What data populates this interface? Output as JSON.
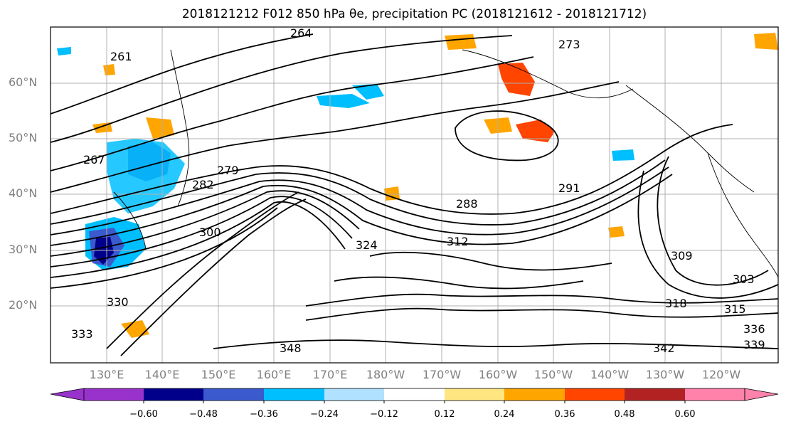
{
  "title": "2018121212 F012 850 hPa θe, precipitation PC (2018121612 - 2018121712)",
  "map": {
    "lat_labels": [
      "60°N",
      "50°N",
      "40°N",
      "30°N",
      "20°N"
    ],
    "lon_labels": [
      "130°E",
      "140°E",
      "150°E",
      "160°E",
      "170°E",
      "180°W",
      "170°W",
      "160°W",
      "150°W",
      "140°W",
      "130°W",
      "120°W"
    ],
    "contour_labels": [
      "264",
      "261",
      "267",
      "279",
      "282",
      "288",
      "309",
      "303",
      "312",
      "315",
      "318",
      "324",
      "336",
      "339",
      "342",
      "348",
      "300",
      "291",
      "273",
      "330",
      "333"
    ]
  },
  "colorbar": {
    "ticks": [
      "−0.60",
      "−0.48",
      "−0.36",
      "−0.24",
      "−0.12",
      "0.12",
      "0.24",
      "0.36",
      "0.48",
      "0.60"
    ],
    "colors": [
      "#9932cc",
      "#00008b",
      "#3a5acd",
      "#00bfff",
      "#b0e2ff",
      "#ffffff",
      "#ffe680",
      "#ffa500",
      "#ff4500",
      "#b22222",
      "#ff82ab"
    ]
  }
}
